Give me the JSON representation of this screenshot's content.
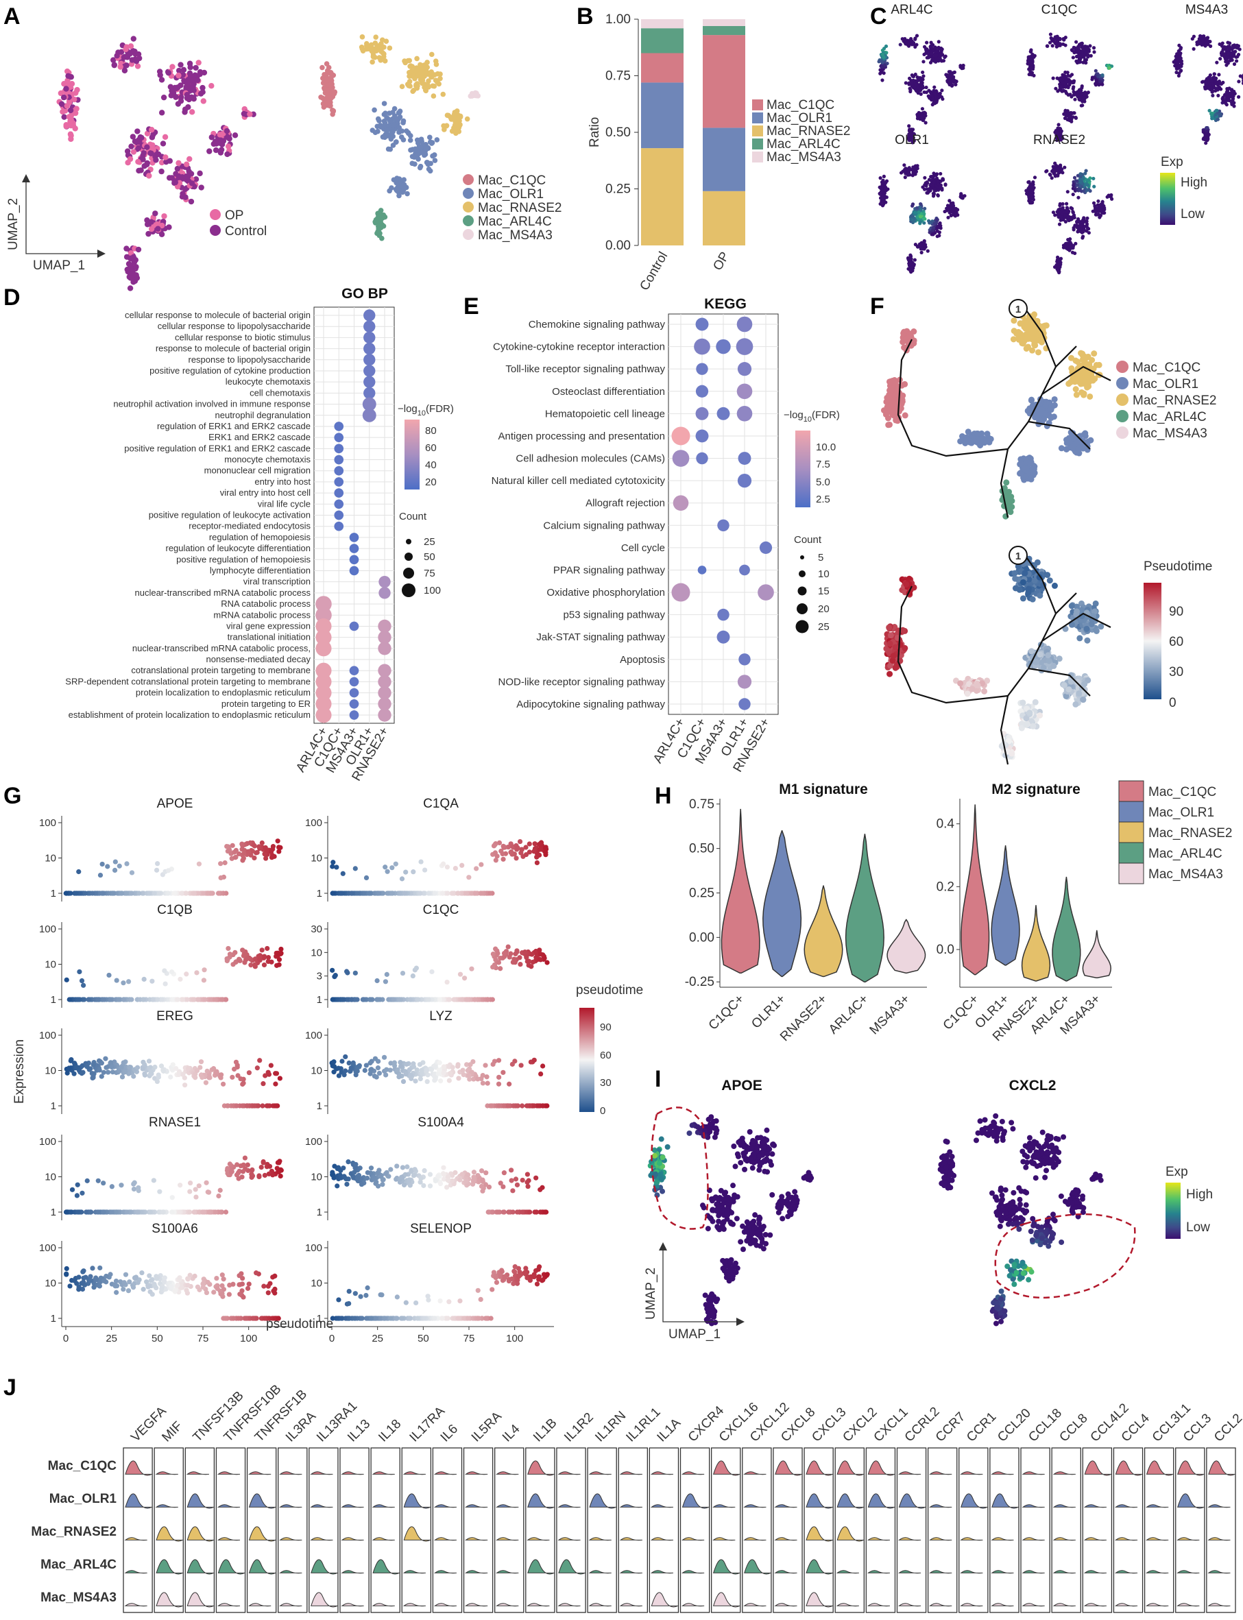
{
  "colors": {
    "Mac_C1QC": "#d47b86",
    "Mac_OLR1": "#6f86b8",
    "Mac_RNASE2": "#e4c06a",
    "Mac_ARL4C": "#5c9f83",
    "Mac_MS4A3": "#ecd6de",
    "OP": "#e86aa4",
    "Control": "#8b2e8e",
    "exp_low": "#3b0f70",
    "exp_high": "#d8e219",
    "pt_low": "#1e4f8c",
    "pt_mid": "#f2f2f2",
    "pt_high": "#b2182b"
  },
  "panel_labels": [
    "A",
    "B",
    "C",
    "D",
    "E",
    "F",
    "G",
    "H",
    "I",
    "J"
  ],
  "panelA": {
    "legend1": [
      "OP",
      "Control"
    ],
    "legend2": [
      "Mac_C1QC",
      "Mac_OLR1",
      "Mac_RNASE2",
      "Mac_ARL4C",
      "Mac_MS4A3"
    ],
    "xaxis": "UMAP_1",
    "yaxis": "UMAP_2"
  },
  "panelC": {
    "genes": [
      "ARL4C",
      "C1QC",
      "MS4A3",
      "OLR1",
      "RNASE2"
    ],
    "legend_title": "Exp",
    "legend_high": "High",
    "legend_low": "Low"
  },
  "panelD": {
    "title": "GO BP",
    "legend_title": "-log10(FDR)",
    "color_ticks": [
      "80",
      "60",
      "40",
      "20"
    ],
    "size_title": "Count",
    "size_ticks": [
      "25",
      "50",
      "75",
      "100"
    ]
  },
  "panelE": {
    "title": "KEGG",
    "legend_title": "-log10(FDR)",
    "color_ticks": [
      "10.0",
      "7.5",
      "5.0",
      "2.5"
    ],
    "size_title": "Count",
    "size_ticks": [
      "5",
      "10",
      "15",
      "20",
      "25"
    ]
  },
  "panelF": {
    "legend": [
      "Mac_C1QC",
      "Mac_OLR1",
      "Mac_RNASE2",
      "Mac_ARL4C",
      "Mac_MS4A3"
    ],
    "node": "1",
    "pt_title": "Pseudotime",
    "pt_ticks": [
      "90",
      "60",
      "30",
      "0"
    ]
  },
  "panelG": {
    "ylabel": "Expression",
    "xlabel": "pseudotime",
    "legend_title": "pseudotime",
    "legend_ticks": [
      "90",
      "60",
      "30",
      "0"
    ],
    "genes": [
      "APOE",
      "C1QA",
      "C1QB",
      "C1QC",
      "EREG",
      "LYZ",
      "RNASE1",
      "S100A4",
      "S100A6",
      "SELENOP"
    ]
  },
  "panelH": {
    "legend": [
      "Mac_C1QC",
      "Mac_OLR1",
      "Mac_RNASE2",
      "Mac_ARL4C",
      "Mac_MS4A3"
    ]
  },
  "panelI": {
    "genes": [
      "APOE",
      "CXCL2"
    ],
    "xaxis": "UMAP_1",
    "yaxis": "UMAP_2",
    "legend_title": "Exp",
    "legend_high": "High",
    "legend_low": "Low"
  },
  "panelJ": {
    "genes": [
      "VEGFA",
      "MIF",
      "TNFSF13B",
      "TNFRSF10B",
      "TNFRSF1B",
      "IL3RA",
      "IL13RA1",
      "IL13",
      "IL18",
      "IL17RA",
      "IL6",
      "IL5RA",
      "IL4",
      "IL1B",
      "IL1R2",
      "IL1RN",
      "IL1RL1",
      "IL1A",
      "CXCR4",
      "CXCL16",
      "CXCL12",
      "CXCL8",
      "CXCL3",
      "CXCL2",
      "CXCL1",
      "CCRL2",
      "CCR7",
      "CCR1",
      "CCL20",
      "CCL18",
      "CCL8",
      "CCL4L2",
      "CCL4",
      "CCL3L1",
      "CCL3",
      "CCL2"
    ],
    "rows": [
      "Mac_C1QC",
      "Mac_OLR1",
      "Mac_RNASE2",
      "Mac_ARL4C",
      "Mac_MS4A3"
    ]
  },
  "chart_data": [
    {
      "type": "bar",
      "panel": "B",
      "categories": [
        "Control",
        "OP"
      ],
      "ylabel": "Ratio",
      "ylim": [
        0,
        1
      ],
      "yticks": [
        "0.00",
        "0.25",
        "0.50",
        "0.75",
        "1.00"
      ],
      "legend": [
        "Mac_C1QC",
        "Mac_OLR1",
        "Mac_RNASE2",
        "Mac_ARL4C",
        "Mac_MS4A3"
      ],
      "stack_order_bottom_to_top": [
        "Mac_RNASE2",
        "Mac_OLR1",
        "Mac_C1QC",
        "Mac_ARL4C",
        "Mac_MS4A3"
      ],
      "series": [
        {
          "name": "Mac_RNASE2",
          "values": [
            0.43,
            0.24
          ]
        },
        {
          "name": "Mac_OLR1",
          "values": [
            0.29,
            0.28
          ]
        },
        {
          "name": "Mac_C1QC",
          "values": [
            0.13,
            0.41
          ]
        },
        {
          "name": "Mac_ARL4C",
          "values": [
            0.11,
            0.04
          ]
        },
        {
          "name": "Mac_MS4A3",
          "values": [
            0.04,
            0.03
          ]
        }
      ]
    },
    {
      "type": "scatter",
      "panel": "D",
      "title": "GO BP",
      "x_categories": [
        "ARL4C+",
        "C1QC+",
        "MS4A3+",
        "OLR1+",
        "RNASE2+"
      ],
      "y_categories": [
        "cellular response to molecule of bacterial origin",
        "cellular response to lipopolysaccharide",
        "cellular response to biotic stimulus",
        "response to molecule of bacterial origin",
        "response to lipopolysaccharide",
        "positive regulation of cytokine production",
        "leukocyte chemotaxis",
        "cell chemotaxis",
        "neutrophil activation involved in immune response",
        "neutrophil degranulation",
        "regulation of ERK1 and ERK2 cascade",
        "ERK1 and ERK2 cascade",
        "positive regulation of ERK1 and ERK2 cascade",
        "monocyte chemotaxis",
        "mononuclear cell migration",
        "entry into host",
        "viral entry into host cell",
        "viral life cycle",
        "positive regulation of leukocyte activation",
        "receptor-mediated endocytosis",
        "regulation of hemopoiesis",
        "regulation of leukocyte differentiation",
        "positive regulation of hemopoiesis",
        "lymphocyte differentiation",
        "viral transcription",
        "nuclear-transcribed mRNA catabolic process",
        "RNA catabolic process",
        "mRNA catabolic process",
        "viral gene expression",
        "translational initiation",
        "nuclear-transcribed mRNA catabolic process,",
        "nonsense-mediated decay",
        "cotranslational protein targeting to membrane",
        "SRP-dependent cotranslational protein targeting to membrane",
        "protein localization to endoplasmic reticulum",
        "protein targeting to ER",
        "establishment of protein localization to endoplasmic reticulum"
      ],
      "points": [
        {
          "x": 3,
          "rows": [
            0,
            1,
            2,
            3,
            4,
            5,
            6,
            7
          ],
          "count": 40,
          "fdr": 15
        },
        {
          "x": 3,
          "rows": [
            8,
            9
          ],
          "count": 60,
          "fdr": 25
        },
        {
          "x": 1,
          "rows": [
            10,
            11,
            12,
            13,
            14,
            15,
            16,
            17,
            18,
            19
          ],
          "count": 18,
          "fdr": 8
        },
        {
          "x": 2,
          "rows": [
            20,
            21,
            22,
            23
          ],
          "count": 18,
          "fdr": 6
        },
        {
          "x": 4,
          "rows": [
            24,
            25
          ],
          "count": 40,
          "fdr": 45
        },
        {
          "x": 0,
          "rows": [
            26,
            27
          ],
          "count": 95,
          "fdr": 70
        },
        {
          "x": 0,
          "rows": [
            28,
            29,
            30,
            32,
            33,
            34,
            35,
            36
          ],
          "count": 90,
          "fdr": 78
        },
        {
          "x": 4,
          "rows": [
            28,
            29,
            30,
            32,
            33,
            34,
            35,
            36
          ],
          "count": 55,
          "fdr": 62
        },
        {
          "x": 2,
          "rows": [
            28,
            32,
            33,
            34,
            35,
            36
          ],
          "count": 18,
          "fdr": 10
        }
      ],
      "color_legend": "-log10(FDR)",
      "size_legend": "Count"
    },
    {
      "type": "scatter",
      "panel": "E",
      "title": "KEGG",
      "x_categories": [
        "ARL4C+",
        "C1QC+",
        "MS4A3+",
        "OLR1+",
        "RNASE2+"
      ],
      "y_categories": [
        "Chemokine signaling pathway",
        "Cytokine-cytokine receptor interaction",
        "Toll-like receptor signaling pathway",
        "Osteoclast differentiation",
        "Hematopoietic cell lineage",
        "Antigen processing and presentation",
        "Cell adhesion molecules (CAMs)",
        "Natural killer cell mediated cytotoxicity",
        "Allograft rejection",
        "Calcium signaling pathway",
        "Cell cycle",
        "PPAR signaling pathway",
        "Oxidative phosphorylation",
        "p53 signaling pathway",
        "Jak-STAT signaling pathway",
        "Apoptosis",
        "NOD-like receptor signaling pathway",
        "Adipocytokine signaling pathway"
      ],
      "points": [
        {
          "x": 1,
          "y": 0,
          "count": 10,
          "fdr": 2
        },
        {
          "x": 3,
          "y": 0,
          "count": 16,
          "fdr": 3
        },
        {
          "x": 1,
          "y": 1,
          "count": 18,
          "fdr": 3
        },
        {
          "x": 2,
          "y": 1,
          "count": 14,
          "fdr": 2
        },
        {
          "x": 3,
          "y": 1,
          "count": 20,
          "fdr": 3
        },
        {
          "x": 1,
          "y": 2,
          "count": 8,
          "fdr": 2
        },
        {
          "x": 3,
          "y": 2,
          "count": 12,
          "fdr": 3
        },
        {
          "x": 1,
          "y": 3,
          "count": 9,
          "fdr": 2
        },
        {
          "x": 3,
          "y": 3,
          "count": 16,
          "fdr": 5
        },
        {
          "x": 1,
          "y": 4,
          "count": 10,
          "fdr": 3
        },
        {
          "x": 2,
          "y": 4,
          "count": 10,
          "fdr": 2
        },
        {
          "x": 3,
          "y": 4,
          "count": 16,
          "fdr": 4
        },
        {
          "x": 0,
          "y": 5,
          "count": 25,
          "fdr": 11
        },
        {
          "x": 1,
          "y": 5,
          "count": 10,
          "fdr": 2
        },
        {
          "x": 0,
          "y": 6,
          "count": 20,
          "fdr": 5
        },
        {
          "x": 1,
          "y": 6,
          "count": 8,
          "fdr": 2
        },
        {
          "x": 3,
          "y": 6,
          "count": 10,
          "fdr": 2
        },
        {
          "x": 3,
          "y": 7,
          "count": 12,
          "fdr": 2
        },
        {
          "x": 0,
          "y": 8,
          "count": 16,
          "fdr": 7
        },
        {
          "x": 2,
          "y": 9,
          "count": 8,
          "fdr": 2
        },
        {
          "x": 4,
          "y": 10,
          "count": 9,
          "fdr": 2
        },
        {
          "x": 1,
          "y": 11,
          "count": 3,
          "fdr": 1
        },
        {
          "x": 3,
          "y": 11,
          "count": 6,
          "fdr": 2
        },
        {
          "x": 0,
          "y": 12,
          "count": 25,
          "fdr": 7
        },
        {
          "x": 4,
          "y": 12,
          "count": 18,
          "fdr": 6
        },
        {
          "x": 2,
          "y": 13,
          "count": 8,
          "fdr": 2
        },
        {
          "x": 2,
          "y": 14,
          "count": 10,
          "fdr": 2
        },
        {
          "x": 3,
          "y": 15,
          "count": 8,
          "fdr": 2
        },
        {
          "x": 3,
          "y": 16,
          "count": 12,
          "fdr": 6
        },
        {
          "x": 3,
          "y": 17,
          "count": 8,
          "fdr": 2
        }
      ],
      "color_legend": "-log10(FDR)",
      "size_legend": "Count"
    },
    {
      "type": "scatter",
      "panel": "G",
      "xlabel": "pseudotime",
      "ylabel": "Expression",
      "xticks": [
        0,
        25,
        50,
        75,
        100
      ],
      "yscale": "log",
      "panels": [
        {
          "gene": "APOE",
          "yticks": [
            "1",
            "10",
            "100"
          ]
        },
        {
          "gene": "C1QA",
          "yticks": [
            "1",
            "10",
            "100"
          ]
        },
        {
          "gene": "C1QB",
          "yticks": [
            "1",
            "10",
            "100"
          ]
        },
        {
          "gene": "C1QC",
          "yticks": [
            "1",
            "3",
            "10",
            "30"
          ]
        },
        {
          "gene": "EREG",
          "yticks": [
            "1",
            "10",
            "100"
          ]
        },
        {
          "gene": "LYZ",
          "yticks": [
            "1",
            "10",
            "100"
          ]
        },
        {
          "gene": "RNASE1",
          "yticks": [
            "1",
            "10",
            "100"
          ]
        },
        {
          "gene": "S100A4",
          "yticks": [
            "1",
            "10",
            "100"
          ]
        },
        {
          "gene": "S100A6",
          "yticks": [
            "1",
            "10",
            "100"
          ]
        },
        {
          "gene": "SELENOP",
          "yticks": [
            "1",
            "10",
            "100"
          ]
        }
      ]
    },
    {
      "type": "violin",
      "panel": "H",
      "charts": [
        {
          "title": "M1 signature",
          "categories": [
            "C1QC+",
            "OLR1+",
            "RNASE2+",
            "ARL4C+",
            "MS4A3+"
          ],
          "yticks": [
            "-0.25",
            "0.00",
            "0.25",
            "0.50",
            "0.75"
          ],
          "ylim": [
            -0.28,
            0.78
          ],
          "violins": [
            {
              "min": -0.2,
              "max": 0.72,
              "mode": -0.03
            },
            {
              "min": -0.22,
              "max": 0.6,
              "mode": 0.1
            },
            {
              "min": -0.22,
              "max": 0.29,
              "mode": -0.07
            },
            {
              "min": -0.25,
              "max": 0.58,
              "mode": 0.0
            },
            {
              "min": -0.2,
              "max": 0.1,
              "mode": -0.1
            }
          ]
        },
        {
          "title": "M2 signature",
          "categories": [
            "C1QC+",
            "OLR1+",
            "RNASE2+",
            "ARL4C+",
            "MS4A3+"
          ],
          "yticks": [
            "0.0",
            "0.2",
            "0.4"
          ],
          "ylim": [
            -0.12,
            0.48
          ],
          "violins": [
            {
              "min": -0.08,
              "max": 0.46,
              "mode": 0.04
            },
            {
              "min": -0.05,
              "max": 0.33,
              "mode": 0.06
            },
            {
              "min": -0.1,
              "max": 0.14,
              "mode": -0.05
            },
            {
              "min": -0.1,
              "max": 0.23,
              "mode": -0.01
            },
            {
              "min": -0.09,
              "max": 0.06,
              "mode": -0.06
            }
          ]
        }
      ]
    }
  ]
}
